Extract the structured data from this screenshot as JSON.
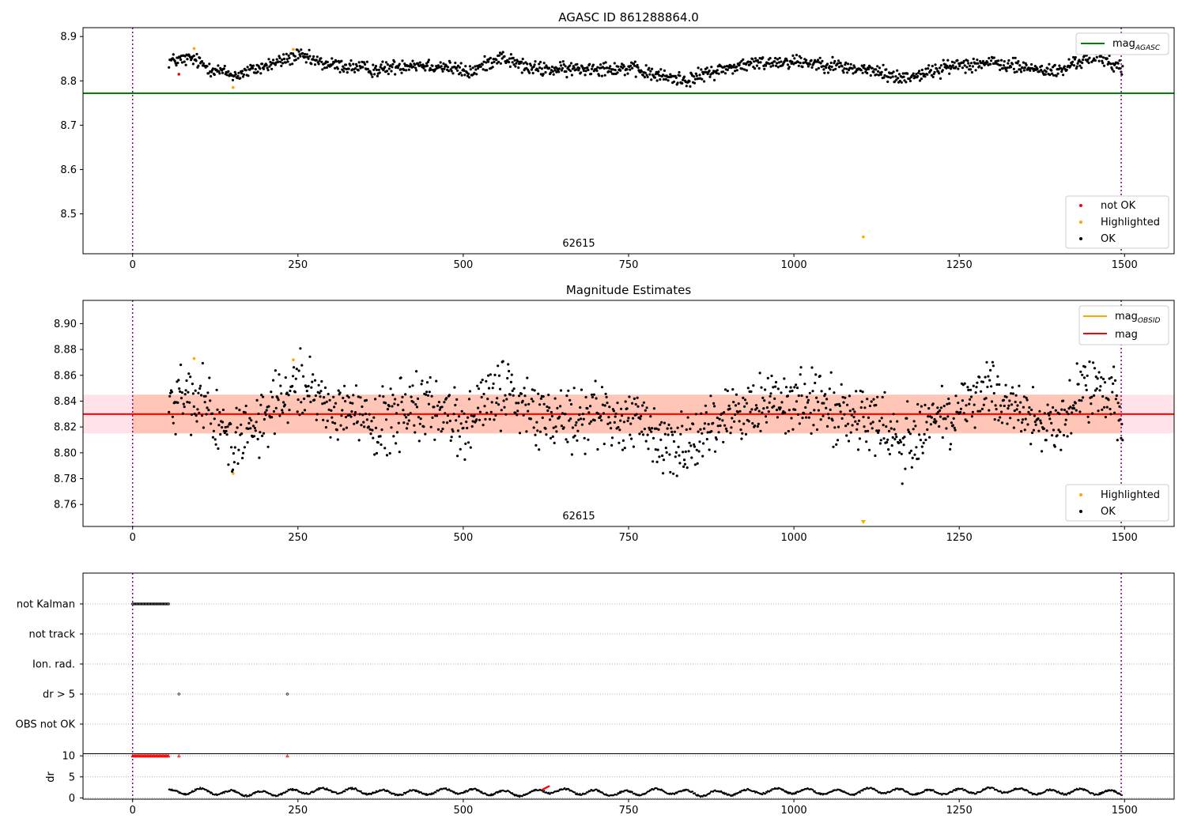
{
  "chart_data": [
    {
      "type": "scatter",
      "title": "AGASC ID 861288864.0",
      "xlim": [
        -75,
        1575
      ],
      "ylim": [
        8.41,
        8.92
      ],
      "x_ticks": [
        "0",
        "250",
        "500",
        "750",
        "1000",
        "1250",
        "1500"
      ],
      "y_ticks": [
        "8.9",
        "8.8",
        "8.7",
        "8.6",
        "8.5"
      ],
      "grid": false,
      "obsid_label": "62615",
      "vlines": [
        0,
        1495
      ],
      "hlines": [
        {
          "name": "mag_AGASC",
          "y": 8.772,
          "color": "#008000",
          "x_range": [
            -75,
            1575
          ]
        }
      ],
      "legend_lines": {
        "position": "top-right",
        "entries": [
          {
            "label": "mag",
            "sub": "AGASC",
            "color": "#008000"
          }
        ]
      },
      "legend_points": {
        "position": "bottom-right",
        "entries": [
          {
            "label": "not OK",
            "color": "#ff0000"
          },
          {
            "label": "Highlighted",
            "color": "#ffa500"
          },
          {
            "label": "OK",
            "color": "#000000"
          }
        ]
      },
      "series": [
        {
          "name": "not OK",
          "color": "#ff0000",
          "points": [
            [
              70,
              8.815
            ]
          ]
        },
        {
          "name": "Highlighted",
          "color": "#ffa500",
          "points": [
            [
              93,
              8.873
            ],
            [
              152,
              8.785
            ],
            [
              243,
              8.871
            ],
            [
              1105,
              8.448
            ]
          ]
        },
        {
          "name": "OK",
          "color": "#000000",
          "trend": [
            [
              55,
              8.845
            ],
            [
              90,
              8.85
            ],
            [
              115,
              8.83
            ],
            [
              155,
              8.812
            ],
            [
              200,
              8.833
            ],
            [
              250,
              8.857
            ],
            [
              290,
              8.838
            ],
            [
              370,
              8.825
            ],
            [
              420,
              8.838
            ],
            [
              475,
              8.832
            ],
            [
              510,
              8.818
            ],
            [
              555,
              8.855
            ],
            [
              600,
              8.828
            ],
            [
              650,
              8.825
            ],
            [
              700,
              8.83
            ],
            [
              750,
              8.828
            ],
            [
              800,
              8.81
            ],
            [
              840,
              8.802
            ],
            [
              880,
              8.822
            ],
            [
              920,
              8.835
            ],
            [
              960,
              8.842
            ],
            [
              1000,
              8.845
            ],
            [
              1050,
              8.838
            ],
            [
              1080,
              8.83
            ],
            [
              1130,
              8.82
            ],
            [
              1160,
              8.806
            ],
            [
              1200,
              8.818
            ],
            [
              1250,
              8.838
            ],
            [
              1300,
              8.84
            ],
            [
              1350,
              8.83
            ],
            [
              1400,
              8.82
            ],
            [
              1430,
              8.845
            ],
            [
              1460,
              8.855
            ],
            [
              1495,
              8.83
            ]
          ],
          "x_range": [
            55,
            1497
          ],
          "count": 1300,
          "spread": 0.008
        }
      ]
    },
    {
      "type": "scatter",
      "title": "Magnitude Estimates",
      "xlim": [
        -75,
        1575
      ],
      "ylim": [
        8.743,
        8.918
      ],
      "x_ticks": [
        "0",
        "250",
        "500",
        "750",
        "1000",
        "1250",
        "1500"
      ],
      "y_ticks": [
        "8.90",
        "8.88",
        "8.86",
        "8.84",
        "8.82",
        "8.80",
        "8.78",
        "8.76"
      ],
      "grid": false,
      "obsid_label": "62615",
      "vlines": [
        0,
        1495
      ],
      "hlines": [
        {
          "name": "mag_OBSID",
          "y": 8.83,
          "color": "#ffa500",
          "x_range": [
            0,
            1495
          ]
        },
        {
          "name": "mag",
          "y": 8.83,
          "color": "#ff0000",
          "x_range": [
            -75,
            1575
          ]
        }
      ],
      "bands": [
        {
          "name": "mag band",
          "y_range": [
            8.815,
            8.845
          ],
          "x_range": [
            -75,
            1575
          ],
          "color": "#ffc0cb"
        },
        {
          "name": "mag_OBSID band",
          "y_range": [
            8.815,
            8.845
          ],
          "x_range": [
            0,
            1495
          ],
          "color": "#ffa07a"
        }
      ],
      "legend_lines": {
        "position": "top-right",
        "entries": [
          {
            "label": "mag",
            "sub": "OBSID",
            "color": "#ffa500"
          },
          {
            "label": "mag",
            "sub": "",
            "color": "#ff0000"
          }
        ]
      },
      "legend_points": {
        "position": "bottom-right",
        "entries": [
          {
            "label": "Highlighted",
            "color": "#ffa500"
          },
          {
            "label": "OK",
            "color": "#000000"
          }
        ]
      },
      "series": [
        {
          "name": "Highlighted",
          "color": "#ffa500",
          "points": [
            [
              93,
              8.873
            ],
            [
              152,
              8.784
            ],
            [
              243,
              8.872
            ]
          ],
          "offscale": [
            {
              "x": 1105,
              "marker": "triangle-down"
            }
          ]
        },
        {
          "name": "OK",
          "color": "#000000",
          "trend": [
            [
              55,
              8.84
            ],
            [
              90,
              8.845
            ],
            [
              115,
              8.83
            ],
            [
              155,
              8.81
            ],
            [
              200,
              8.83
            ],
            [
              250,
              8.857
            ],
            [
              290,
              8.838
            ],
            [
              370,
              8.822
            ],
            [
              420,
              8.835
            ],
            [
              475,
              8.832
            ],
            [
              510,
              8.818
            ],
            [
              555,
              8.85
            ],
            [
              600,
              8.83
            ],
            [
              650,
              8.825
            ],
            [
              700,
              8.832
            ],
            [
              750,
              8.828
            ],
            [
              800,
              8.81
            ],
            [
              840,
              8.803
            ],
            [
              880,
              8.822
            ],
            [
              920,
              8.835
            ],
            [
              960,
              8.84
            ],
            [
              1000,
              8.843
            ],
            [
              1050,
              8.835
            ],
            [
              1080,
              8.828
            ],
            [
              1130,
              8.818
            ],
            [
              1160,
              8.808
            ],
            [
              1200,
              8.82
            ],
            [
              1250,
              8.838
            ],
            [
              1300,
              8.842
            ],
            [
              1350,
              8.83
            ],
            [
              1400,
              8.82
            ],
            [
              1430,
              8.843
            ],
            [
              1460,
              8.852
            ],
            [
              1495,
              8.828
            ]
          ],
          "x_range": [
            55,
            1497
          ],
          "count": 1300,
          "spread": 0.012
        }
      ]
    },
    {
      "type": "scatter",
      "title": "",
      "xlim": [
        -75,
        1575
      ],
      "x_ticks": [
        "0",
        "250",
        "500",
        "750",
        "1000",
        "1250",
        "1500"
      ],
      "vlines": [
        0,
        1495
      ],
      "flag_rows": [
        "not Kalman",
        "not track",
        "Ion. rad.",
        "dr > 5",
        "OBS not OK"
      ],
      "flags": [
        {
          "row": "not Kalman",
          "x_range": [
            0,
            55
          ],
          "color": "#000000"
        },
        {
          "row": "dr > 5",
          "points": [
            70,
            234
          ],
          "color": "#000000"
        }
      ],
      "dr": {
        "ylabel": "dr",
        "ylim": [
          -0.3,
          10.6
        ],
        "y_ticks": [
          "10",
          "5",
          "0"
        ],
        "capped": {
          "value": 10,
          "color": "#ff0000",
          "x_range": [
            0,
            55
          ],
          "points": [
            70,
            234
          ]
        },
        "segments_x_range": [
          55,
          1497
        ],
        "trend": [
          [
            55,
            1.3
          ],
          [
            100,
            1.7
          ],
          [
            140,
            1.2
          ],
          [
            200,
            1.0
          ],
          [
            260,
            1.6
          ],
          [
            310,
            1.8
          ],
          [
            380,
            1.3
          ],
          [
            430,
            1.2
          ],
          [
            480,
            1.7
          ],
          [
            540,
            1.3
          ],
          [
            600,
            0.9
          ],
          [
            620,
            1.8
          ],
          [
            680,
            1.4
          ],
          [
            740,
            1.0
          ],
          [
            800,
            1.7
          ],
          [
            860,
            1.0
          ],
          [
            920,
            1.3
          ],
          [
            960,
            1.7
          ],
          [
            1020,
            1.6
          ],
          [
            1080,
            1.2
          ],
          [
            1120,
            1.8
          ],
          [
            1200,
            1.3
          ],
          [
            1260,
            1.6
          ],
          [
            1320,
            1.9
          ],
          [
            1380,
            1.3
          ],
          [
            1430,
            1.6
          ],
          [
            1497,
            1.1
          ]
        ],
        "highlight_red": {
          "x_range": [
            620,
            630
          ],
          "y": 2.8
        },
        "color": "#000000"
      }
    }
  ]
}
